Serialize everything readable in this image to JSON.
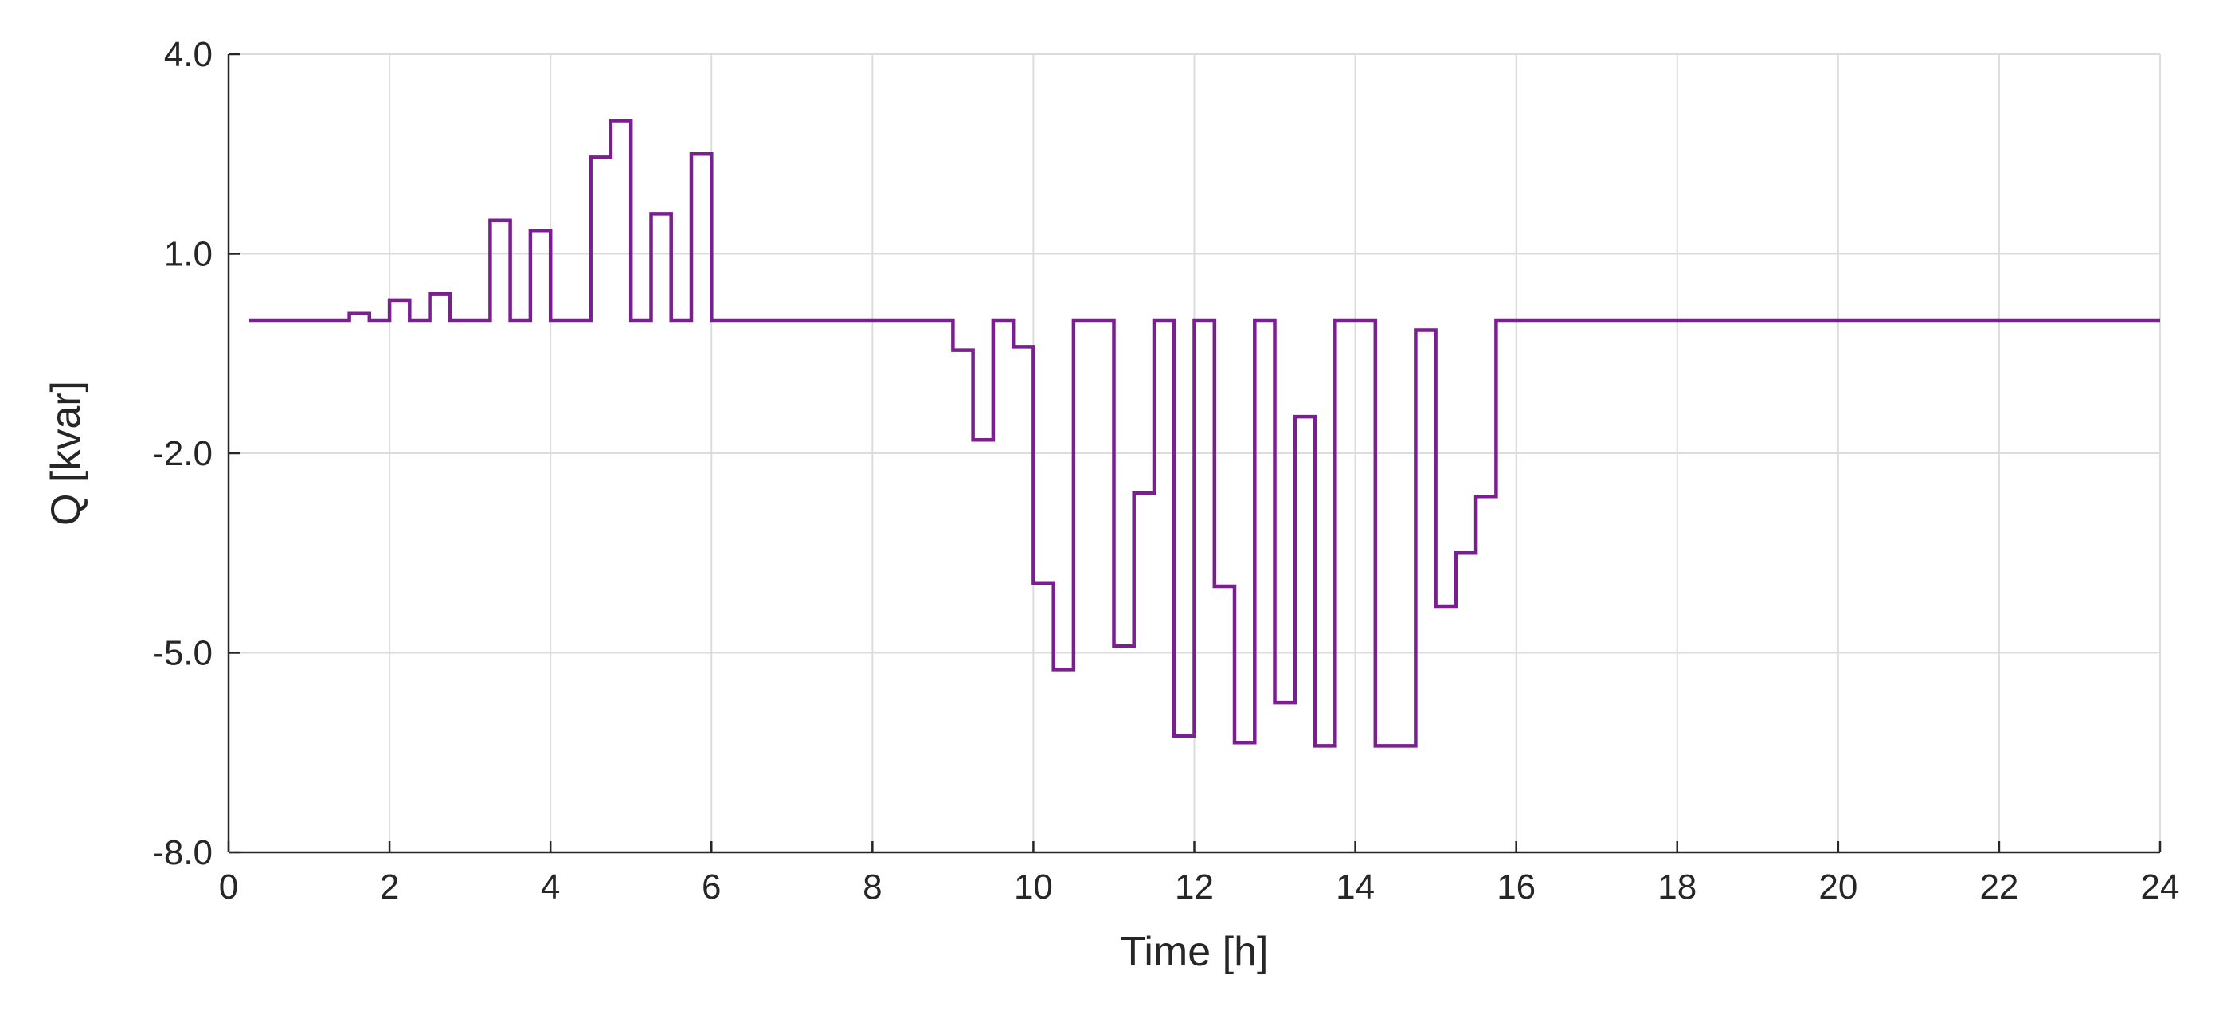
{
  "chart_data": {
    "type": "line",
    "step": true,
    "xlabel": "Time [h]",
    "ylabel": "Q [kvar]",
    "xlim": [
      0,
      24
    ],
    "ylim": [
      -8,
      4
    ],
    "xticks": [
      0,
      2,
      4,
      6,
      8,
      10,
      12,
      14,
      16,
      18,
      20,
      22,
      24
    ],
    "xtick_labels": [
      "0",
      "2",
      "4",
      "6",
      "8",
      "10",
      "12",
      "14",
      "16",
      "18",
      "20",
      "22",
      "24"
    ],
    "yticks": [
      4,
      1,
      -2,
      -5,
      -8
    ],
    "ytick_labels": [
      "4.0",
      "1.0",
      "-2.0",
      "-5.0",
      "-8.0"
    ],
    "grid": true,
    "color": "#7a1f8f",
    "series": [
      {
        "steps": [
          [
            0.25,
            0
          ],
          [
            1.5,
            0.1
          ],
          [
            1.75,
            0
          ],
          [
            2.0,
            0.3
          ],
          [
            2.25,
            0
          ],
          [
            2.5,
            0.4
          ],
          [
            2.75,
            0
          ],
          [
            3.25,
            1.5
          ],
          [
            3.5,
            0
          ],
          [
            3.75,
            1.35
          ],
          [
            4.0,
            0
          ],
          [
            4.5,
            2.45
          ],
          [
            4.75,
            3.0
          ],
          [
            5.0,
            0
          ],
          [
            5.25,
            1.6
          ],
          [
            5.5,
            0
          ],
          [
            5.75,
            2.5
          ],
          [
            6.0,
            0
          ],
          [
            9.0,
            -0.45
          ],
          [
            9.25,
            -1.8
          ],
          [
            9.5,
            0
          ],
          [
            9.75,
            -0.4
          ],
          [
            10.0,
            -3.95
          ],
          [
            10.25,
            -5.25
          ],
          [
            10.5,
            0
          ],
          [
            11.0,
            -4.9
          ],
          [
            11.25,
            -2.6
          ],
          [
            11.5,
            0
          ],
          [
            11.75,
            -6.25
          ],
          [
            12.0,
            0
          ],
          [
            12.25,
            -4.0
          ],
          [
            12.5,
            -6.35
          ],
          [
            12.75,
            0
          ],
          [
            13.0,
            -5.75
          ],
          [
            13.25,
            -1.45
          ],
          [
            13.5,
            -6.4
          ],
          [
            13.75,
            0
          ],
          [
            14.25,
            -6.4
          ],
          [
            14.75,
            -0.15
          ],
          [
            15.0,
            -4.3
          ],
          [
            15.25,
            -3.5
          ],
          [
            15.5,
            -2.65
          ],
          [
            15.75,
            0
          ],
          [
            24.0,
            0
          ]
        ]
      }
    ]
  }
}
